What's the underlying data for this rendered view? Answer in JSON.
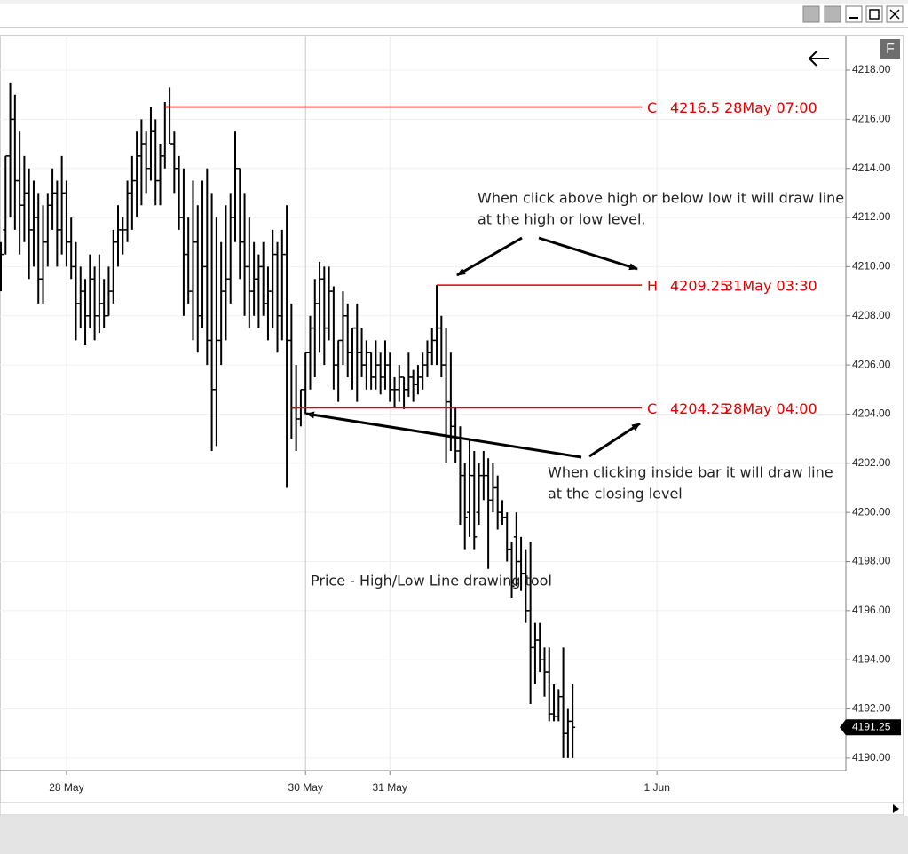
{
  "chart_data": {
    "type": "ohlc",
    "color": "#000000",
    "categories": [
      null,
      null,
      null,
      null,
      null,
      null,
      null,
      null,
      null,
      null,
      null,
      null,
      null,
      null,
      "28 May",
      null,
      null,
      null,
      null,
      null,
      null,
      null,
      null,
      null,
      null,
      null,
      null,
      null,
      null,
      null,
      null,
      null,
      null,
      null,
      null,
      null,
      null,
      null,
      null,
      null,
      null,
      null,
      null,
      null,
      null,
      null,
      null,
      null,
      null,
      null,
      null,
      null,
      null,
      null,
      null,
      null,
      null,
      null,
      null,
      null,
      null,
      null,
      null,
      null,
      null,
      "30 May",
      null,
      null,
      null,
      null,
      null,
      null,
      null,
      null,
      null,
      null,
      null,
      null,
      null,
      null,
      null,
      null,
      null,
      "31 May",
      null,
      null,
      null,
      null,
      null,
      null,
      null,
      null,
      null,
      null,
      null,
      null,
      null,
      null,
      null,
      null,
      null,
      null,
      null,
      null,
      null,
      null,
      null,
      null,
      null,
      null,
      null,
      null,
      null,
      null,
      null,
      null,
      null,
      null,
      null,
      null,
      null,
      null,
      null,
      null,
      null,
      null,
      null,
      null,
      null,
      null,
      null,
      null,
      null,
      null,
      null,
      null,
      null,
      null,
      null,
      null,
      "1 Jun",
      null,
      null,
      null,
      null,
      null,
      null,
      null,
      null,
      null,
      null,
      null,
      null,
      null,
      null,
      null,
      null,
      null,
      null,
      null,
      null,
      null,
      null,
      null,
      null,
      null,
      null,
      null,
      null,
      null,
      null,
      null,
      null,
      null,
      null,
      null,
      null,
      null,
      null,
      null,
      null
    ],
    "series": [
      {
        "open": [
          4210,
          4211.5,
          4214.5,
          4216,
          4213.5,
          4212.5,
          4213,
          4211.5,
          4212,
          4209.5,
          4211,
          4212.5,
          4213,
          4211.5,
          4213,
          4211,
          4210,
          4208.5,
          4209,
          4208,
          4209.5,
          4208,
          4208.5,
          4208,
          4209,
          4211,
          4211.5,
          4211.5,
          4213,
          4213.5,
          4214.5,
          4215,
          4214,
          4215.5,
          4213.5,
          4214.5,
          4216.5,
          4215,
          4214,
          4212,
          4210.5,
          4209,
          4211,
          4208,
          4210,
          4207,
          4205,
          4207,
          4209,
          4209.5,
          4212,
          4214,
          4211,
          4210,
          4209,
          4209.5,
          4210,
          4208.5,
          4209,
          4210.5,
          4208,
          4210.5,
          4207,
          4204.25,
          4203.8,
          4205,
          4206.5,
          4207.5,
          4208.5,
          4209.5,
          4207.5,
          4209,
          4206,
          4207,
          4208,
          4206.5,
          4207.5,
          4206.5,
          4206,
          4206.5,
          4205.5,
          4206,
          4205.5,
          4206,
          4205,
          4205,
          4205.5,
          4205,
          4205.5,
          4205.2,
          4205.5,
          4206,
          4206.5,
          4207,
          4207.5,
          4206,
          4204.5,
          4203.5,
          4202.5,
          4201.5,
          4200,
          4201.5,
          4200,
          4201.5,
          4201.5,
          4200.5,
          4201,
          4200,
          4199.8,
          4198.5,
          4199,
          4198,
          4197.5,
          4196,
          4194.5,
          4194.8,
          4194,
          4193.5,
          4191.8,
          4191.7,
          4192.5,
          4191,
          4191.5,
          null,
          null,
          null,
          null,
          null,
          null,
          null,
          null,
          null,
          null,
          null,
          null,
          null,
          null,
          null,
          null,
          null,
          null,
          null,
          null,
          null,
          null,
          null,
          null,
          null,
          null,
          null,
          null,
          null,
          null,
          null,
          null,
          null,
          null,
          null,
          null,
          null,
          null,
          null,
          null,
          null,
          null,
          null,
          null,
          null,
          null,
          null,
          null,
          null,
          null,
          null,
          null,
          null,
          null,
          null,
          null,
          null,
          null
        ],
        "high": [
          4211,
          4214.5,
          4217.5,
          4217,
          4215.5,
          4214.5,
          4214,
          4213.5,
          4213,
          4212.5,
          4213,
          4214,
          4213.5,
          4214.5,
          4213.5,
          4212,
          4211,
          4210,
          4209.5,
          4210.5,
          4210,
          4210.5,
          4209.5,
          4210,
          4211.5,
          4212.5,
          4212,
          4213.5,
          4214.5,
          4215.5,
          4216,
          4215.5,
          4216.5,
          4216,
          4215,
          4216.7,
          4217.3,
          4215.5,
          4214.5,
          4214,
          4212,
          4213.5,
          4212.5,
          4213.5,
          4214,
          4213,
          4212,
          4211,
          4212.5,
          4213,
          4215.5,
          4214,
          4213,
          4212,
          4211,
          4210.5,
          4211,
          4210,
          4211.5,
          4211,
          4211.5,
          4212.5,
          4208.5,
          4206,
          4205,
          4206.5,
          4208,
          4209.5,
          4210.2,
          4210,
          4210,
          4209.2,
          4207,
          4209,
          4208.5,
          4207.5,
          4208.5,
          4207.5,
          4207,
          4206.5,
          4207,
          4206.5,
          4207,
          4206.5,
          4205.5,
          4206,
          4205.5,
          4206.5,
          4205.8,
          4206,
          4206.5,
          4207,
          4207.5,
          4209.25,
          4208,
          4207.5,
          4206.5,
          4204.3,
          4203.5,
          4202,
          4203,
          4202.5,
          4202,
          4202.5,
          4202.2,
          4202,
          4201.5,
          4200.5,
          4200,
          4198.8,
          4200,
          4199,
          4198.5,
          4198.8,
          4195.5,
          4195.5,
          4194.5,
          4194.5,
          4193,
          4192.8,
          4194.5,
          4192,
          4193,
          null,
          null,
          null,
          null,
          null,
          null,
          null,
          null,
          null,
          null,
          null,
          null,
          null,
          null,
          null,
          null,
          null,
          null,
          null,
          null,
          null,
          null,
          null,
          null,
          null,
          null,
          null,
          null,
          null,
          null,
          null,
          null,
          null,
          null,
          null,
          null,
          null,
          null,
          null,
          null,
          null,
          null,
          null,
          null,
          null,
          null,
          null,
          null,
          null,
          null,
          null,
          null,
          null,
          null,
          null,
          null,
          null,
          null
        ],
        "low": [
          4209,
          4210.5,
          4212,
          4211.5,
          4210.5,
          4211,
          4209.5,
          4210,
          4208.5,
          4208.5,
          4210,
          4211.5,
          4210,
          4210.5,
          4210,
          4209.5,
          4207,
          4207.5,
          4206.8,
          4207.5,
          4207,
          4207.3,
          4207.5,
          4208,
          4208.5,
          4210,
          4210.5,
          4211,
          4211.5,
          4212,
          4212.5,
          4213,
          4213.5,
          4212.5,
          4212.5,
          4214,
          4215,
          4213,
          4211.5,
          4208,
          4208.5,
          4207,
          4206.5,
          4207.5,
          4206,
          4202.5,
          4202.7,
          4206,
          4207,
          4208.5,
          4211,
          4209.5,
          4208,
          4207.5,
          4208,
          4207.5,
          4208,
          4207,
          4207.5,
          4206.5,
          4207,
          4201,
          4203,
          4202.5,
          4203.5,
          4204,
          4205,
          4205.5,
          4206.5,
          4206,
          4207,
          4205,
          4204.5,
          4206,
          4205.5,
          4205,
          4204.5,
          4205.5,
          4205,
          4205,
          4205,
          4204.8,
          4205,
          4204.5,
          4204.3,
          4204.5,
          4204.2,
          4204.7,
          4204.5,
          4204.8,
          4205,
          4205.5,
          4206,
          4206,
          4205.5,
          4202,
          4202.5,
          4202,
          4199.5,
          4198.5,
          4199,
          4198.5,
          4199.5,
          4200.5,
          4197.7,
          4200,
          4199.3,
          4199.5,
          4198,
          4196.5,
          4197,
          4196.8,
          4195.5,
          4192.2,
          4193,
          4193.5,
          4192.5,
          4191.5,
          4191.5,
          4191.5,
          4190,
          4190,
          4190,
          null,
          null,
          null,
          null,
          null,
          null,
          null,
          null,
          null,
          null,
          null,
          null,
          null,
          null,
          null,
          null,
          null,
          null,
          null,
          null,
          null,
          null,
          null,
          null,
          null,
          null,
          null,
          null,
          null,
          null,
          null,
          null,
          null,
          null,
          null,
          null,
          null,
          null,
          null,
          null,
          null,
          null,
          null,
          null,
          null,
          null,
          null,
          null,
          null,
          null,
          null,
          null,
          null,
          null,
          null,
          null,
          null,
          null
        ],
        "close": [
          4210.5,
          4214.5,
          4216,
          4213.5,
          4212.5,
          4213,
          4211.5,
          4212,
          4209.5,
          4211,
          4212.5,
          4213,
          4211.5,
          4213,
          4211,
          4210,
          4208.5,
          4209,
          4208,
          4209.5,
          4208,
          4208.5,
          4208,
          4209,
          4211,
          4211.5,
          4211.5,
          4213,
          4213.5,
          4214.5,
          4215,
          4214,
          4215.5,
          4213.5,
          4214.5,
          4216.5,
          4215,
          4214,
          4212,
          4210.5,
          4209,
          4211,
          4208,
          4210,
          4207,
          4205,
          4207,
          4209,
          4209.5,
          4212,
          4214,
          4211,
          4210,
          4209,
          4209.5,
          4210,
          4208.5,
          4209,
          4210.5,
          4208,
          4210.5,
          4207,
          4204.25,
          4203.8,
          4205,
          4206.5,
          4207.5,
          4208.5,
          4209.5,
          4207.5,
          4209,
          4206,
          4207,
          4208,
          4206.5,
          4207.5,
          4206.5,
          4206,
          4206.5,
          4205.5,
          4206,
          4205.5,
          4206,
          4205,
          4205,
          4205.5,
          4205,
          4205.5,
          4205.2,
          4205.5,
          4206,
          4206.5,
          4207,
          4207.5,
          4206,
          4204.5,
          4203.5,
          4202.5,
          4201.5,
          4199.8,
          4201.5,
          4199,
          4201.5,
          4201.5,
          4200.5,
          4201,
          4200,
          4199.8,
          4198.5,
          4197,
          4198,
          4197.5,
          4196,
          4194.5,
          4194.8,
          4194,
          4193.5,
          4191.8,
          4191.7,
          4192.5,
          4191,
          4191.5,
          4191.25,
          null,
          null,
          null,
          null,
          null,
          null,
          null,
          null,
          null,
          null,
          null,
          null,
          null,
          null,
          null,
          null,
          null,
          null,
          null,
          null,
          null,
          null,
          null,
          null,
          null,
          null,
          null,
          null,
          null,
          null,
          null,
          null,
          null,
          null,
          null,
          null,
          null,
          null,
          null,
          null,
          null,
          null,
          null,
          null,
          null,
          null,
          null,
          null,
          null,
          null,
          null,
          null,
          null,
          null,
          null,
          null,
          null,
          null
        ]
      }
    ],
    "ylim": [
      4189.49,
      4219.41
    ],
    "yticks": [
      {
        "value": 4190,
        "label": "4190.00"
      },
      {
        "value": 4192,
        "label": "4192.00"
      },
      {
        "value": 4194,
        "label": "4194.00"
      },
      {
        "value": 4196,
        "label": "4196.00"
      },
      {
        "value": 4198,
        "label": "4198.00"
      },
      {
        "value": 4200,
        "label": "4200.00"
      },
      {
        "value": 4202,
        "label": "4202.00"
      },
      {
        "value": 4204,
        "label": "4204.00"
      },
      {
        "value": 4206,
        "label": "4206.00"
      },
      {
        "value": 4208,
        "label": "4208.00"
      },
      {
        "value": 4210,
        "label": "4210.00"
      },
      {
        "value": 4212,
        "label": "4212.00"
      },
      {
        "value": 4214,
        "label": "4214.00"
      },
      {
        "value": 4216,
        "label": "4216.00"
      },
      {
        "value": 4218,
        "label": "4218.00"
      }
    ],
    "grid": true,
    "line_color": "#e00000",
    "price_lines": [
      {
        "kind": "C",
        "value": 4216.5,
        "time": "28May 07:00"
      },
      {
        "kind": "H",
        "value": 4209.25,
        "time": "31May 03:30"
      },
      {
        "kind": "C",
        "value": 4204.25,
        "time": "28May 04:00"
      }
    ],
    "notes": [
      "When click above high or below low it will draw line",
      "at the high or low level.",
      "When clicking inside bar it will draw line",
      "at the closing level",
      "Price - High/Low Line drawing tool"
    ],
    "button_label": "F"
  }
}
